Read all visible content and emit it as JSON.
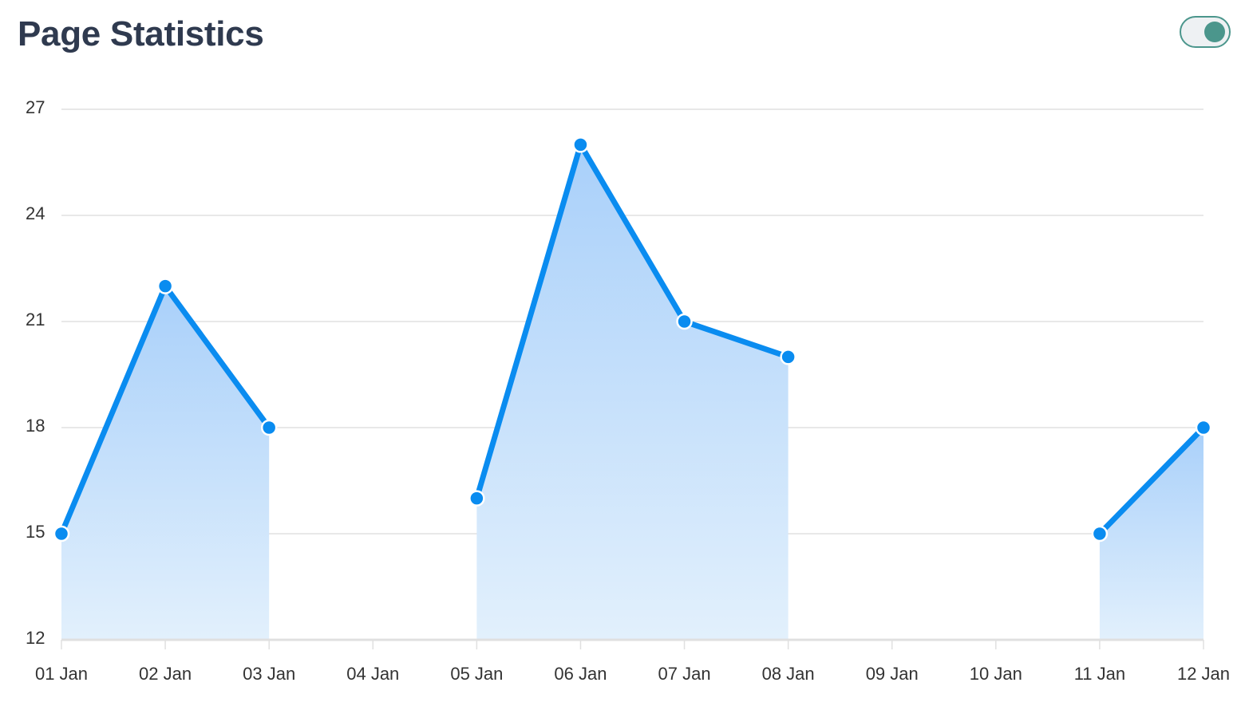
{
  "header": {
    "title": "Page Statistics"
  },
  "toggle": {
    "state": "on"
  },
  "colors": {
    "line": "#0a8cf0",
    "fill_top": "#a9d0fa",
    "fill_bottom": "#e2f0fc",
    "grid": "#e0e0e0",
    "axis": "#e0e0e0",
    "toggle": "#4b968c",
    "title": "#2f3a4f"
  },
  "chart_data": {
    "type": "area",
    "title": "",
    "xlabel": "",
    "ylabel": "",
    "categories": [
      "01 Jan",
      "02 Jan",
      "03 Jan",
      "04 Jan",
      "05 Jan",
      "06 Jan",
      "07 Jan",
      "08 Jan",
      "09 Jan",
      "10 Jan",
      "11 Jan",
      "12 Jan"
    ],
    "series": [
      {
        "values": [
          15,
          22,
          18,
          null,
          16,
          26,
          21,
          20,
          null,
          null,
          15,
          18
        ]
      }
    ],
    "ylim": [
      12,
      27
    ],
    "yticks": [
      12,
      15,
      18,
      21,
      24,
      27
    ],
    "grid": true,
    "legend": "none"
  }
}
